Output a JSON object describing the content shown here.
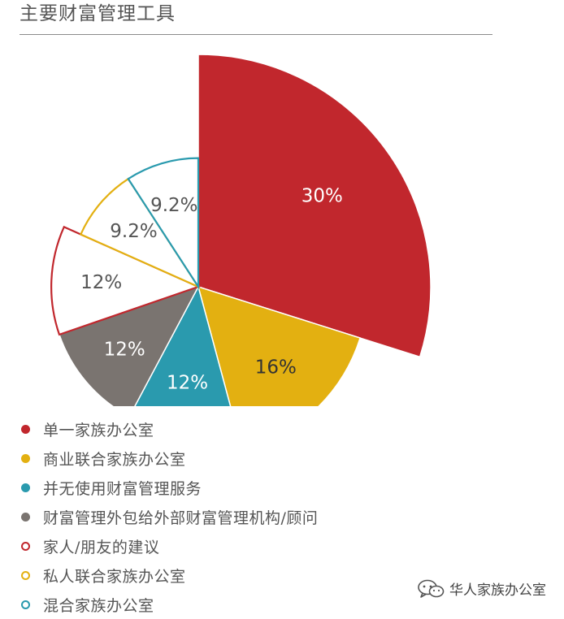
{
  "header": {
    "title": "主要财富管理工具"
  },
  "chart_data": {
    "type": "pie",
    "variant": "polar-area",
    "start_angle_deg": 0,
    "direction": "clockwise",
    "slices": [
      {
        "name": "单一家族办公室",
        "value": 30,
        "label": "30%",
        "color": "#c1272d",
        "style": "filled",
        "label_color": "#ffffff"
      },
      {
        "name": "商业联合家族办公室",
        "value": 16,
        "label": "16%",
        "color": "#e3b011",
        "style": "filled",
        "label_color": "#333333"
      },
      {
        "name": "并无使用财富管理服务",
        "value": 12,
        "label": "12%",
        "color": "#2a9aae",
        "style": "filled",
        "label_color": "#ffffff"
      },
      {
        "name": "财富管理外包给外部财富管理机构/顾问",
        "value": 12,
        "label": "12%",
        "color": "#7a7470",
        "style": "filled",
        "label_color": "#ffffff"
      },
      {
        "name": "家人/朋友的建议",
        "value": 12,
        "label": "12%",
        "color": "#c1272d",
        "style": "outline",
        "label_color": "#555555"
      },
      {
        "name": "私人联合家族办公室",
        "value": 9.2,
        "label": "9.2%",
        "color": "#e3b011",
        "style": "outline",
        "label_color": "#555555"
      },
      {
        "name": "混合家族办公室",
        "value": 9.2,
        "label": "9.2%",
        "color": "#2a9aae",
        "style": "outline",
        "label_color": "#555555"
      }
    ],
    "legend_position": "bottom-left"
  },
  "watermark": {
    "text": "华人家族办公室",
    "icon": "wechat-icon"
  }
}
